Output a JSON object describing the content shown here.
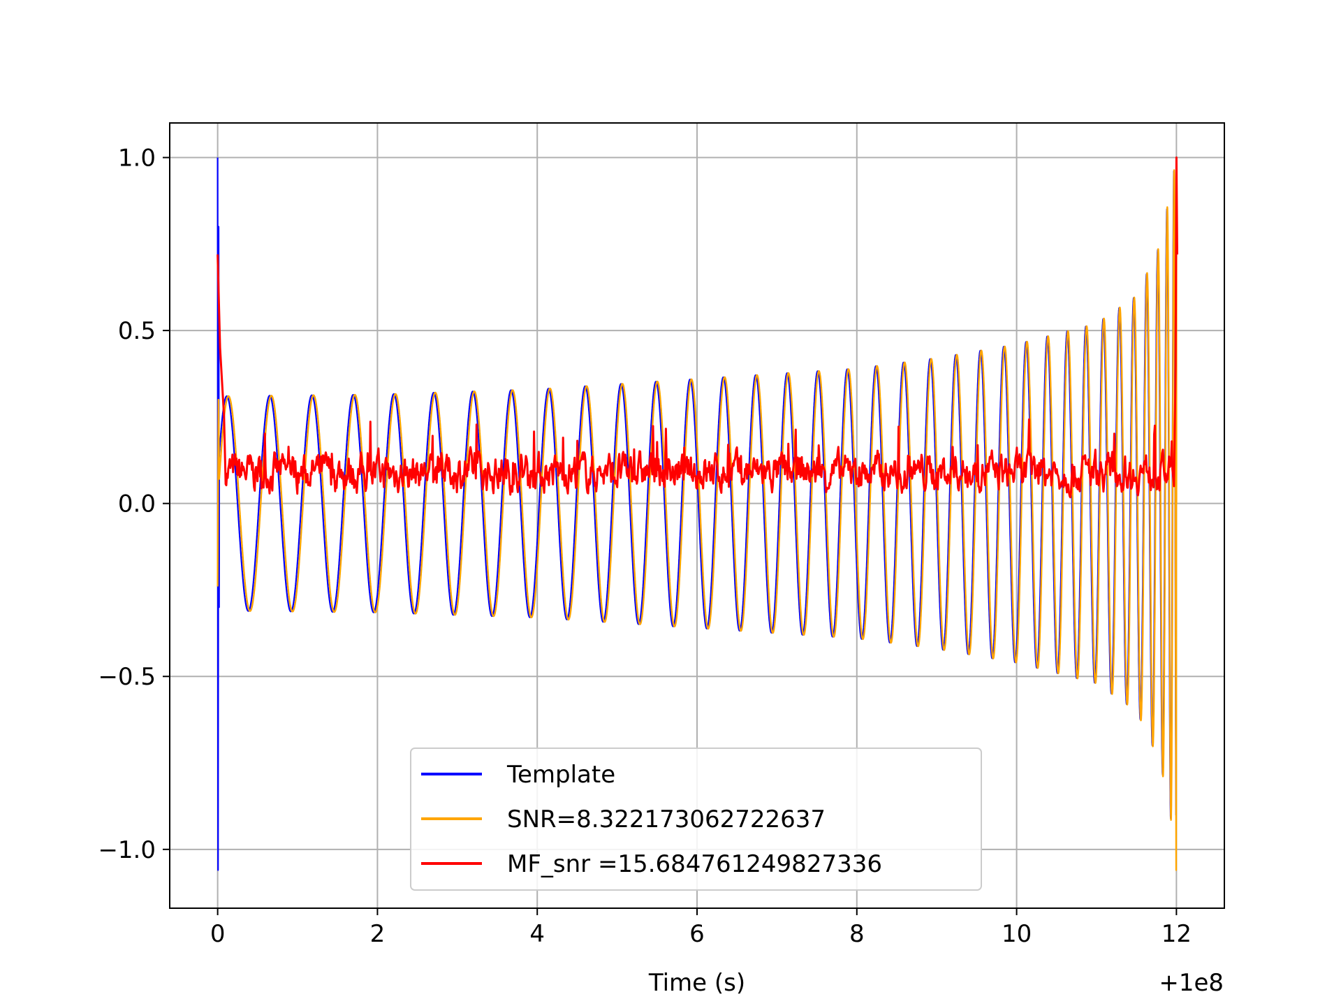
{
  "chart_data": {
    "type": "line",
    "title": "",
    "xlabel": "Time (s)",
    "ylabel": "",
    "x_offset_label": "+1e8",
    "xlim": [
      -0.6,
      12.6
    ],
    "ylim": [
      -1.17,
      1.1
    ],
    "xticks": [
      0,
      2,
      4,
      6,
      8,
      10,
      12
    ],
    "xtick_labels": [
      "0",
      "2",
      "4",
      "6",
      "8",
      "10",
      "12"
    ],
    "yticks": [
      1.0,
      0.5,
      0.0,
      -0.5,
      -1.0
    ],
    "ytick_labels": [
      "1.0",
      "0.5",
      "0.0",
      "−0.5",
      "−1.0"
    ],
    "grid": true,
    "legend_position": "lower center",
    "series": [
      {
        "name": "Template",
        "color": "#0000ff",
        "description_points": [
          {
            "x": 0.0,
            "y": 1.0
          },
          {
            "x": 0.01,
            "y": -1.06
          },
          {
            "x": 0.03,
            "y": 0.8
          },
          {
            "x": 0.1,
            "y": 0.3
          },
          {
            "x": 11.6,
            "y": 0.55
          },
          {
            "x": 12.0,
            "y": 1.0
          }
        ]
      },
      {
        "name": "SNR=8.322173062722637",
        "color": "#ffa500",
        "envelope": [
          {
            "x": 0.0,
            "y": 0.31
          },
          {
            "x": 2.0,
            "y": 0.315
          },
          {
            "x": 4.0,
            "y": 0.33
          },
          {
            "x": 6.0,
            "y": 0.36
          },
          {
            "x": 8.0,
            "y": 0.39
          },
          {
            "x": 9.0,
            "y": 0.42
          },
          {
            "x": 10.0,
            "y": 0.46
          },
          {
            "x": 11.0,
            "y": 0.52
          },
          {
            "x": 11.5,
            "y": 0.6
          },
          {
            "x": 11.8,
            "y": 0.75
          },
          {
            "x": 12.0,
            "y": 1.0
          }
        ]
      },
      {
        "name": "MF_snr =15.684761249827336",
        "color": "#ff0000",
        "description_points": [
          {
            "x": 0.0,
            "y": 0.72
          },
          {
            "x": 0.1,
            "y": 0.1
          },
          {
            "x": 6.0,
            "y": 0.08
          },
          {
            "x": 11.6,
            "y": 0.1
          },
          {
            "x": 12.0,
            "y": 1.0
          }
        ]
      }
    ]
  }
}
